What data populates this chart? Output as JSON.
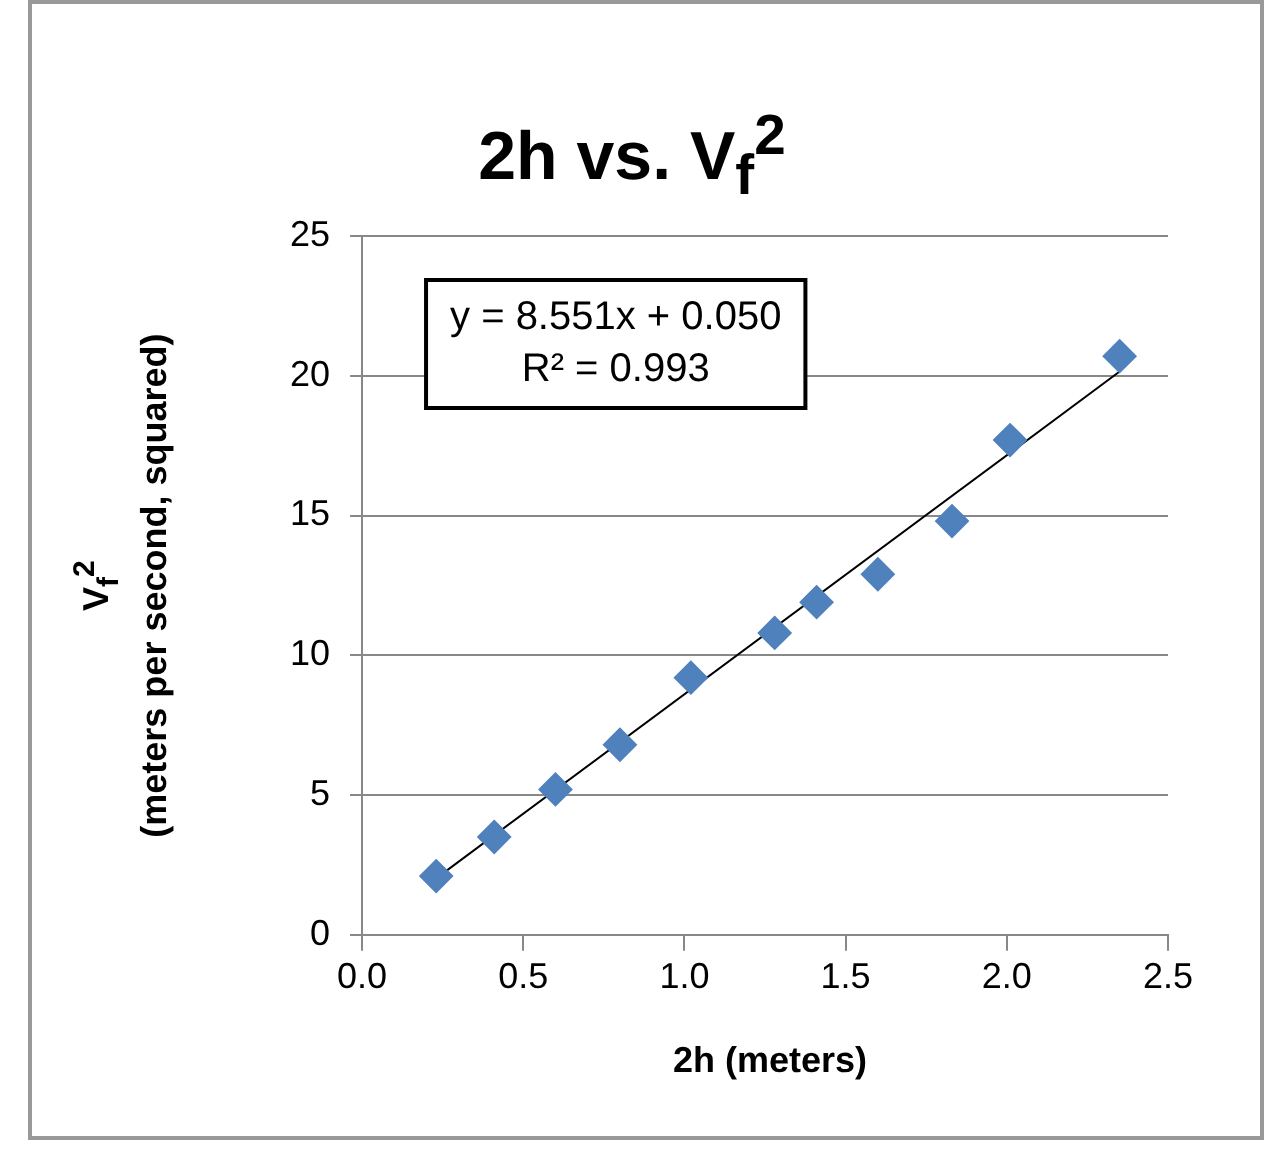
{
  "chart_data": {
    "type": "scatter",
    "title": "2h vs. V$_{f}$$^{2}$",
    "xlabel": "2h (meters)",
    "ylabel": "V$_{f}$$^{2}$\n(meters per second, squared)",
    "annotations": [
      "y = 8.551x + 0.050",
      "R² = 0.993"
    ],
    "xlim": [
      0,
      2.5
    ],
    "xticks": [
      {
        "value": 0,
        "label": "0.0"
      },
      {
        "value": 0.5,
        "label": "0.5"
      },
      {
        "value": 1,
        "label": "1.0"
      },
      {
        "value": 1.5,
        "label": "1.5"
      },
      {
        "value": 2,
        "label": "2.0"
      },
      {
        "value": 2.5,
        "label": "2.5"
      }
    ],
    "ylim": [
      0,
      25
    ],
    "yticks": [
      0,
      5,
      10,
      15,
      20,
      25
    ],
    "grid": "y",
    "legend": false,
    "marker": "diamond",
    "series": [
      {
        "type": "scatter",
        "color": "#4f81bd",
        "x": [
          0.23,
          0.41,
          0.6,
          0.8,
          1.02,
          1.28,
          1.41,
          1.6,
          1.83,
          2.01,
          2.35
        ],
        "values": [
          2.1,
          3.5,
          5.2,
          6.8,
          9.2,
          10.8,
          11.9,
          12.9,
          14.8,
          17.7,
          20.7
        ]
      },
      {
        "type": "line",
        "color": "#000000",
        "marker": "none",
        "x": [
          0.23,
          2.35
        ],
        "values": [
          2.02,
          20.15
        ]
      }
    ]
  }
}
